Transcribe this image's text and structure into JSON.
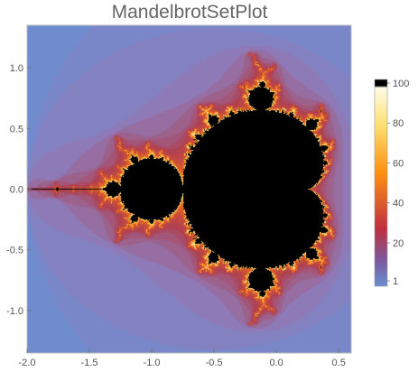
{
  "window": {
    "title": "MandelbrotSetPlot"
  },
  "plot": {
    "x_range": [
      -2.0,
      0.6
    ],
    "y_range": [
      -1.35,
      1.35
    ],
    "x_ticks": [
      {
        "value": -2.0,
        "label": "-2.0"
      },
      {
        "value": -1.5,
        "label": "-1.5"
      },
      {
        "value": -1.0,
        "label": "-1.0"
      },
      {
        "value": -0.5,
        "label": "-0.5"
      },
      {
        "value": 0.0,
        "label": "0.0"
      },
      {
        "value": 0.5,
        "label": "0.5"
      }
    ],
    "y_ticks": [
      {
        "value": 1.0,
        "label": "1.0"
      },
      {
        "value": 0.5,
        "label": "0.5"
      },
      {
        "value": 0.0,
        "label": "0.0"
      },
      {
        "value": -0.5,
        "label": "-0.5"
      },
      {
        "value": -1.0,
        "label": "-1.0"
      }
    ],
    "max_iterations": 100,
    "colors": {
      "set": "#000000",
      "background": "#6a8fd0",
      "outer_band": "#7b86c8",
      "inner_band": "#8f7ab8",
      "edge_red": "#b04050",
      "edge_orange": "#e66020",
      "edge_yellow": "#ffd040",
      "frame": "#bbbbbb"
    }
  },
  "colorbar": {
    "labels": [
      "100",
      "80",
      "60",
      "40",
      "20",
      "1"
    ],
    "values": [
      100,
      80,
      60,
      40,
      20,
      1
    ],
    "gradient_stops": [
      "#000000",
      "#fffce8",
      "#ffe070",
      "#ff9010",
      "#c03040",
      "#7a5aa0",
      "#6a8fd0"
    ]
  }
}
